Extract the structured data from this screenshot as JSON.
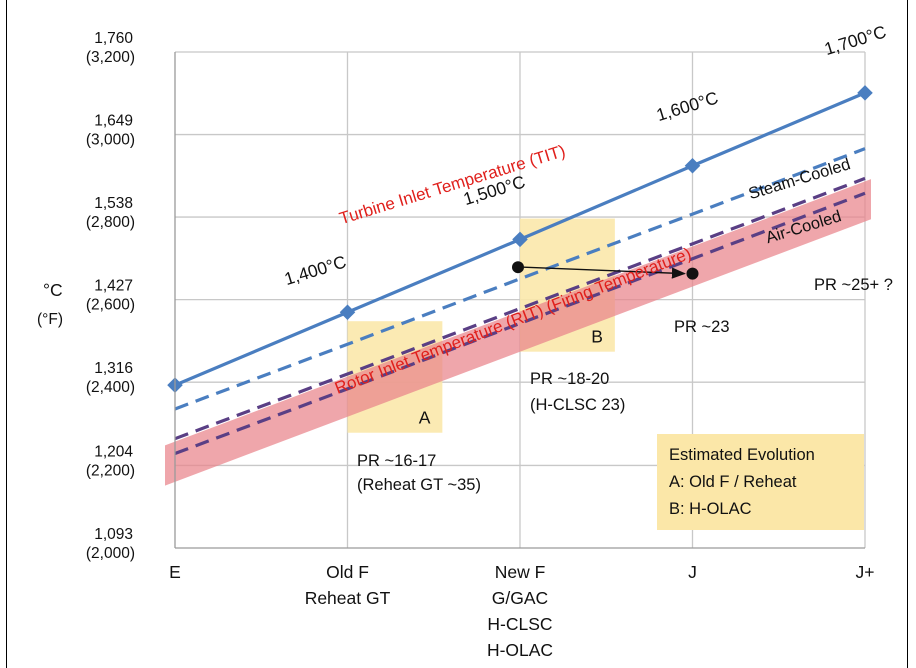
{
  "chart_data": {
    "type": "line",
    "title": "",
    "xlabel": "",
    "ylabel": {
      "line1": "°C",
      "line2": "(°F)"
    },
    "categories": [
      {
        "lines": [
          {
            "text": "E",
            "color": "#111111"
          }
        ]
      },
      {
        "lines": [
          {
            "text": "Old F",
            "color": "#111111"
          },
          {
            "text": "Reheat GT",
            "color": "#111111"
          }
        ]
      },
      {
        "lines": [
          {
            "text": "New F",
            "color": "#111111"
          },
          {
            "text": "G/GAC",
            "color": "#111111"
          },
          {
            "text": "H-CLSC",
            "color": "#e0201c"
          },
          {
            "text": "H-OLAC",
            "color": "#111111"
          }
        ]
      },
      {
        "lines": [
          {
            "text": "J",
            "color": "#111111"
          }
        ]
      },
      {
        "lines": [
          {
            "text": "J+",
            "color": "#111111"
          }
        ]
      }
    ],
    "y_ticks": [
      {
        "c": "1,093",
        "f": "(2,000)",
        "v": 1093
      },
      {
        "c": "1,204",
        "f": "(2,200)",
        "v": 1204
      },
      {
        "c": "1,316",
        "f": "(2,400)",
        "v": 1316
      },
      {
        "c": "1,427",
        "f": "(2,600)",
        "v": 1427
      },
      {
        "c": "1,538",
        "f": "(2,800)",
        "v": 1538
      },
      {
        "c": "1,649",
        "f": "(3,000)",
        "v": 1649
      },
      {
        "c": "1,760",
        "f": "(3,200)",
        "v": 1760
      }
    ],
    "ylim": [
      1093,
      1760
    ],
    "grid": true,
    "series": [
      {
        "name": "Turbine Inlet Temperature (TIT)",
        "style": "solid-markers",
        "color": "#4a7ec0",
        "values": [
          1312,
          1410,
          1508,
          1607,
          1705
        ]
      },
      {
        "name": "Steam-Cooled",
        "style": "dashed",
        "color": "#4a7ec0",
        "values": [
          1280,
          1367,
          1455,
          1542,
          1630
        ]
      },
      {
        "name": "Air-Cooled",
        "style": "dashed",
        "color": "#5a3f85",
        "values": [
          1240,
          1327,
          1415,
          1502,
          1590
        ]
      },
      {
        "name": "Air-Cooled (lower)",
        "style": "dashed",
        "color": "#5a3f85",
        "values": [
          1220,
          1307,
          1395,
          1482,
          1570
        ]
      }
    ],
    "tit_point_labels": [
      "",
      "1,400°C",
      "1,500°C",
      "1,600°C",
      "1,700°C"
    ],
    "rit_band": {
      "label": "Rotor Inlet Temperature (RIT) (Firing Temperature)",
      "color": "#e9838a",
      "low": 1210,
      "high": 1605
    },
    "tit_label": "Turbine Inlet Temperature (TIT)",
    "regions": [
      {
        "label": "A",
        "x0": 1.0,
        "x1": 1.55,
        "y0": 1398,
        "y1": 1248
      },
      {
        "label": "B",
        "x0": 2.0,
        "x1": 2.55,
        "y0": 1536,
        "y1": 1357
      }
    ],
    "arrow": {
      "from": [
        2.0,
        1476
      ],
      "to": [
        3.0,
        1466
      ]
    },
    "annotations": {
      "pr_16": "PR ~16-17",
      "reheat": "(Reheat GT ~35)",
      "pr_18": "PR ~18-20",
      "hclsc": "(H-CLSC 23)",
      "pr_23": "PR ~23",
      "pr_25": "PR ~25+ ?",
      "steam_cooled": "Steam-Cooled",
      "air_cooled": "Air-Cooled"
    },
    "legend": {
      "title": "Estimated Evolution",
      "items": [
        "A: Old F / Reheat",
        "B: H-OLAC"
      ],
      "placement": "bottom-right",
      "color": "#fbe7a8"
    },
    "colors": {
      "region": "#fbe7a8",
      "grid": "#c8c8c8"
    }
  }
}
